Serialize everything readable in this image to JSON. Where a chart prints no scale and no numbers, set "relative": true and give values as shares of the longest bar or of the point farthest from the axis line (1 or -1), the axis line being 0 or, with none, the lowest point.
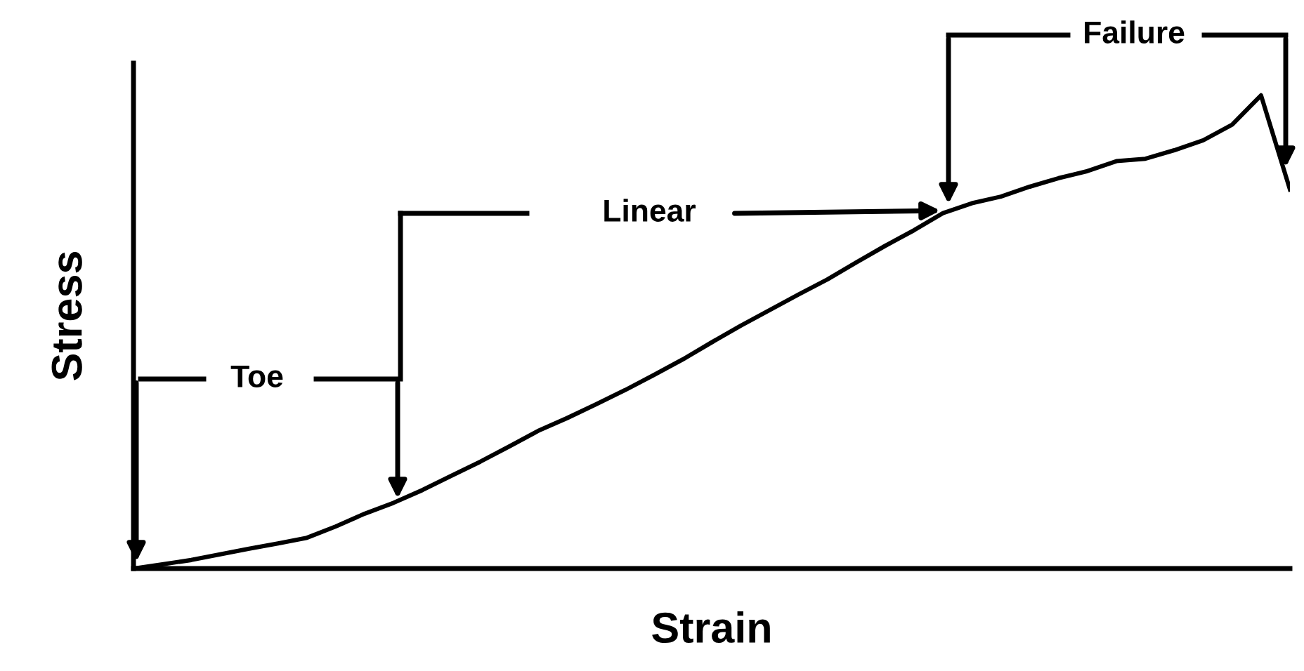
{
  "chart_data": {
    "type": "line",
    "relative": true,
    "xlabel": "Strain",
    "ylabel": "Stress",
    "legend": false,
    "marker": "none",
    "line_style": "solid",
    "annotations": [
      "Toe",
      "Linear",
      "Failure"
    ],
    "categories": [
      null,
      null,
      null,
      null,
      null,
      null,
      null,
      null,
      null,
      null,
      null,
      null,
      null,
      null,
      null,
      null,
      null,
      null,
      null,
      null,
      null,
      null,
      null,
      null,
      null,
      null,
      null,
      null,
      null,
      null,
      null,
      null,
      null,
      null,
      null,
      null,
      null,
      null,
      null,
      null,
      null
    ],
    "series": [
      {
        "color": "#000000",
        "values": [
          0,
          0.009,
          0.018,
          0.03,
          0.042,
          0.053,
          0.065,
          0.089,
          0.116,
          0.139,
          0.166,
          0.196,
          0.226,
          0.258,
          0.291,
          0.318,
          0.347,
          0.377,
          0.409,
          0.442,
          0.478,
          0.513,
          0.546,
          0.579,
          0.611,
          0.647,
          0.682,
          0.715,
          0.751,
          0.772,
          0.786,
          0.807,
          0.825,
          0.84,
          0.861,
          0.866,
          0.884,
          0.905,
          0.938,
          1,
          0.801
        ]
      }
    ]
  }
}
